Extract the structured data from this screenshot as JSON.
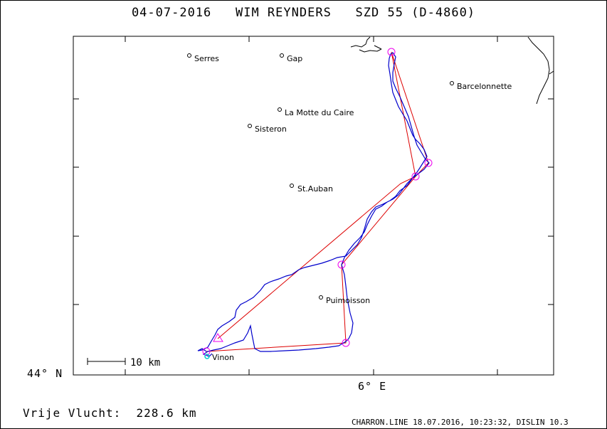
{
  "title": "04-07-2016   WIM REYNDERS   SZD 55 (D-4860)",
  "axes": {
    "lat_label": "44° N",
    "lon_label": "6° E"
  },
  "scale_bar": {
    "label": "10 km"
  },
  "towns": [
    {
      "name": "Serres"
    },
    {
      "name": "Gap"
    },
    {
      "name": "Barcelonnette"
    },
    {
      "name": "La Motte du Caire"
    },
    {
      "name": "Sisteron"
    },
    {
      "name": "St.Auban"
    },
    {
      "name": "Puimoisson"
    },
    {
      "name": "Vinon"
    }
  ],
  "colors": {
    "track": "#0000cc",
    "task_line": "#dd0000",
    "turnpoint": "#ee00ee",
    "start": "#00cccc"
  },
  "footer": {
    "distance_text": "Vrije Vlucht:  228.6 km",
    "credit_text": "CHARRON.LINE 18.07.2016, 10:23:32, DISLIN 10.3"
  }
}
